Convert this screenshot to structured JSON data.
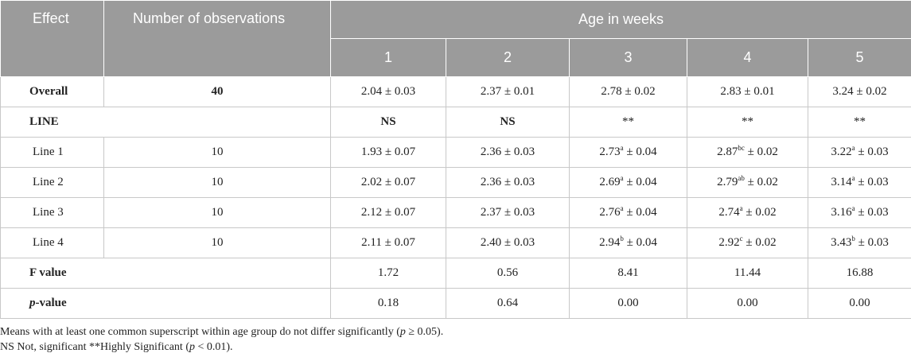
{
  "header": {
    "effect": "Effect",
    "number_of_observations": "Number of observations",
    "age_in_weeks": "Age in weeks",
    "weeks": [
      "1",
      "2",
      "3",
      "4",
      "5"
    ]
  },
  "rows": {
    "overall": {
      "label": "Overall",
      "n": "40",
      "w1": "2.04 ± 0.03",
      "w2": "2.37 ± 0.01",
      "w3": "2.78 ± 0.02",
      "w4": "2.83 ± 0.01",
      "w5": "3.24 ± 0.02"
    },
    "line": {
      "label": "LINE",
      "w1": "NS",
      "w2": "NS",
      "w3": "**",
      "w4": "**",
      "w5": "**"
    },
    "line1": {
      "label": "Line 1",
      "n": "10",
      "w1": "1.93 ± 0.07",
      "w2": "2.36 ± 0.03",
      "w3_val": "2.73",
      "w3_sup": "a",
      "w3_err": " ± 0.04",
      "w4_val": "2.87",
      "w4_sup": "bc",
      "w4_err": " ± 0.02",
      "w5_val": "3.22",
      "w5_sup": "a",
      "w5_err": " ± 0.03"
    },
    "line2": {
      "label": "Line 2",
      "n": "10",
      "w1": "2.02 ± 0.07",
      "w2": "2.36 ± 0.03",
      "w3_val": "2.69",
      "w3_sup": "a",
      "w3_err": " ± 0.04",
      "w4_val": "2.79",
      "w4_sup": "ab",
      "w4_err": " ± 0.02",
      "w5_val": "3.14",
      "w5_sup": "a",
      "w5_err": " ± 0.03"
    },
    "line3": {
      "label": "Line 3",
      "n": "10",
      "w1": "2.12 ± 0.07",
      "w2": "2.37 ± 0.03",
      "w3_val": "2.76",
      "w3_sup": "a",
      "w3_err": " ± 0.04",
      "w4_val": "2.74",
      "w4_sup": "a",
      "w4_err": " ± 0.02",
      "w5_val": "3.16",
      "w5_sup": "a",
      "w5_err": " ± 0.03"
    },
    "line4": {
      "label": "Line 4",
      "n": "10",
      "w1": "2.11 ± 0.07",
      "w2": "2.40 ± 0.03",
      "w3_val": "2.94",
      "w3_sup": "b",
      "w3_err": " ± 0.04",
      "w4_val": "2.92",
      "w4_sup": "c",
      "w4_err": " ± 0.02",
      "w5_val": "3.43",
      "w5_sup": "b",
      "w5_err": " ± 0.03"
    },
    "fvalue": {
      "label": "F value",
      "w1": "1.72",
      "w2": "0.56",
      "w3": "8.41",
      "w4": "11.44",
      "w5": "16.88"
    },
    "pvalue": {
      "label_italic": "p",
      "label_rest": "-value",
      "w1": "0.18",
      "w2": "0.64",
      "w3": "0.00",
      "w4": "0.00",
      "w5": "0.00"
    }
  },
  "notes": {
    "line1_a": "Means with at least one common superscript within age group do not differ significantly (",
    "line1_p": "p",
    "line1_b": " ≥ 0.05).",
    "line2_a": "NS Not, significant **Highly Significant (",
    "line2_p": "p",
    "line2_b": " < 0.01)."
  }
}
